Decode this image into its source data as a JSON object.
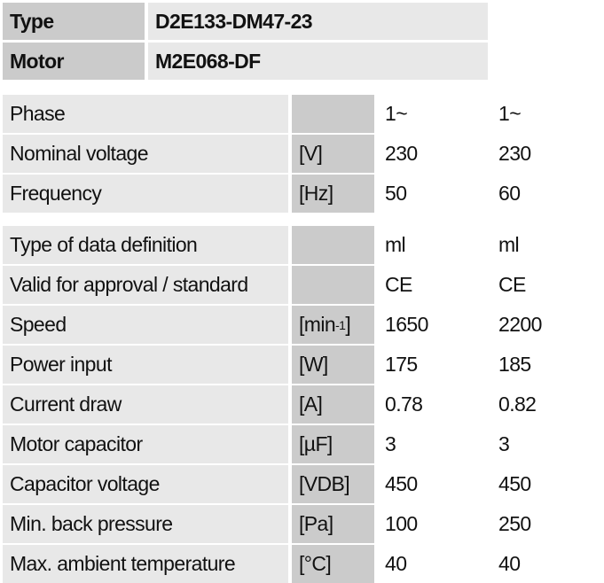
{
  "header": {
    "rows": [
      [
        "Type",
        "D2E133-DM47-23"
      ],
      [
        "Motor",
        "M2E068-DF"
      ]
    ]
  },
  "groups": [
    {
      "rows": [
        {
          "label": "Phase",
          "values": [
            "1~",
            "1~"
          ]
        },
        {
          "label": "Nominal voltage",
          "unit": "[V]",
          "values": [
            "230",
            "230"
          ]
        },
        {
          "label": "Frequency",
          "unit": "[Hz]",
          "values": [
            "50",
            "60"
          ]
        }
      ]
    },
    {
      "rows": [
        {
          "label": "Type of data definition",
          "values": [
            "ml",
            "ml"
          ]
        },
        {
          "label": "Valid for approval / standard",
          "values": [
            "CE",
            "CE"
          ]
        },
        {
          "label": "Speed",
          "unit": {
            "base": "[min",
            "sup": "-1",
            "end": "]"
          },
          "values": [
            "1650",
            "2200"
          ]
        },
        {
          "label": "Power input",
          "unit": "[W]",
          "values": [
            "175",
            "185"
          ]
        },
        {
          "label": "Current draw",
          "unit": "[A]",
          "values": [
            "0.78",
            "0.82"
          ]
        },
        {
          "label": "Motor capacitor",
          "unit": "[µF]",
          "values": [
            "3",
            "3"
          ]
        },
        {
          "label": "Capacitor voltage",
          "unit": "[VDB]",
          "values": [
            "450",
            "450"
          ]
        },
        {
          "label": "Min. back pressure",
          "unit": "[Pa]",
          "values": [
            "100",
            "250"
          ]
        },
        {
          "label": "Max. ambient temperature",
          "unit": "[°C]",
          "values": [
            "40",
            "40"
          ]
        }
      ]
    }
  ]
}
